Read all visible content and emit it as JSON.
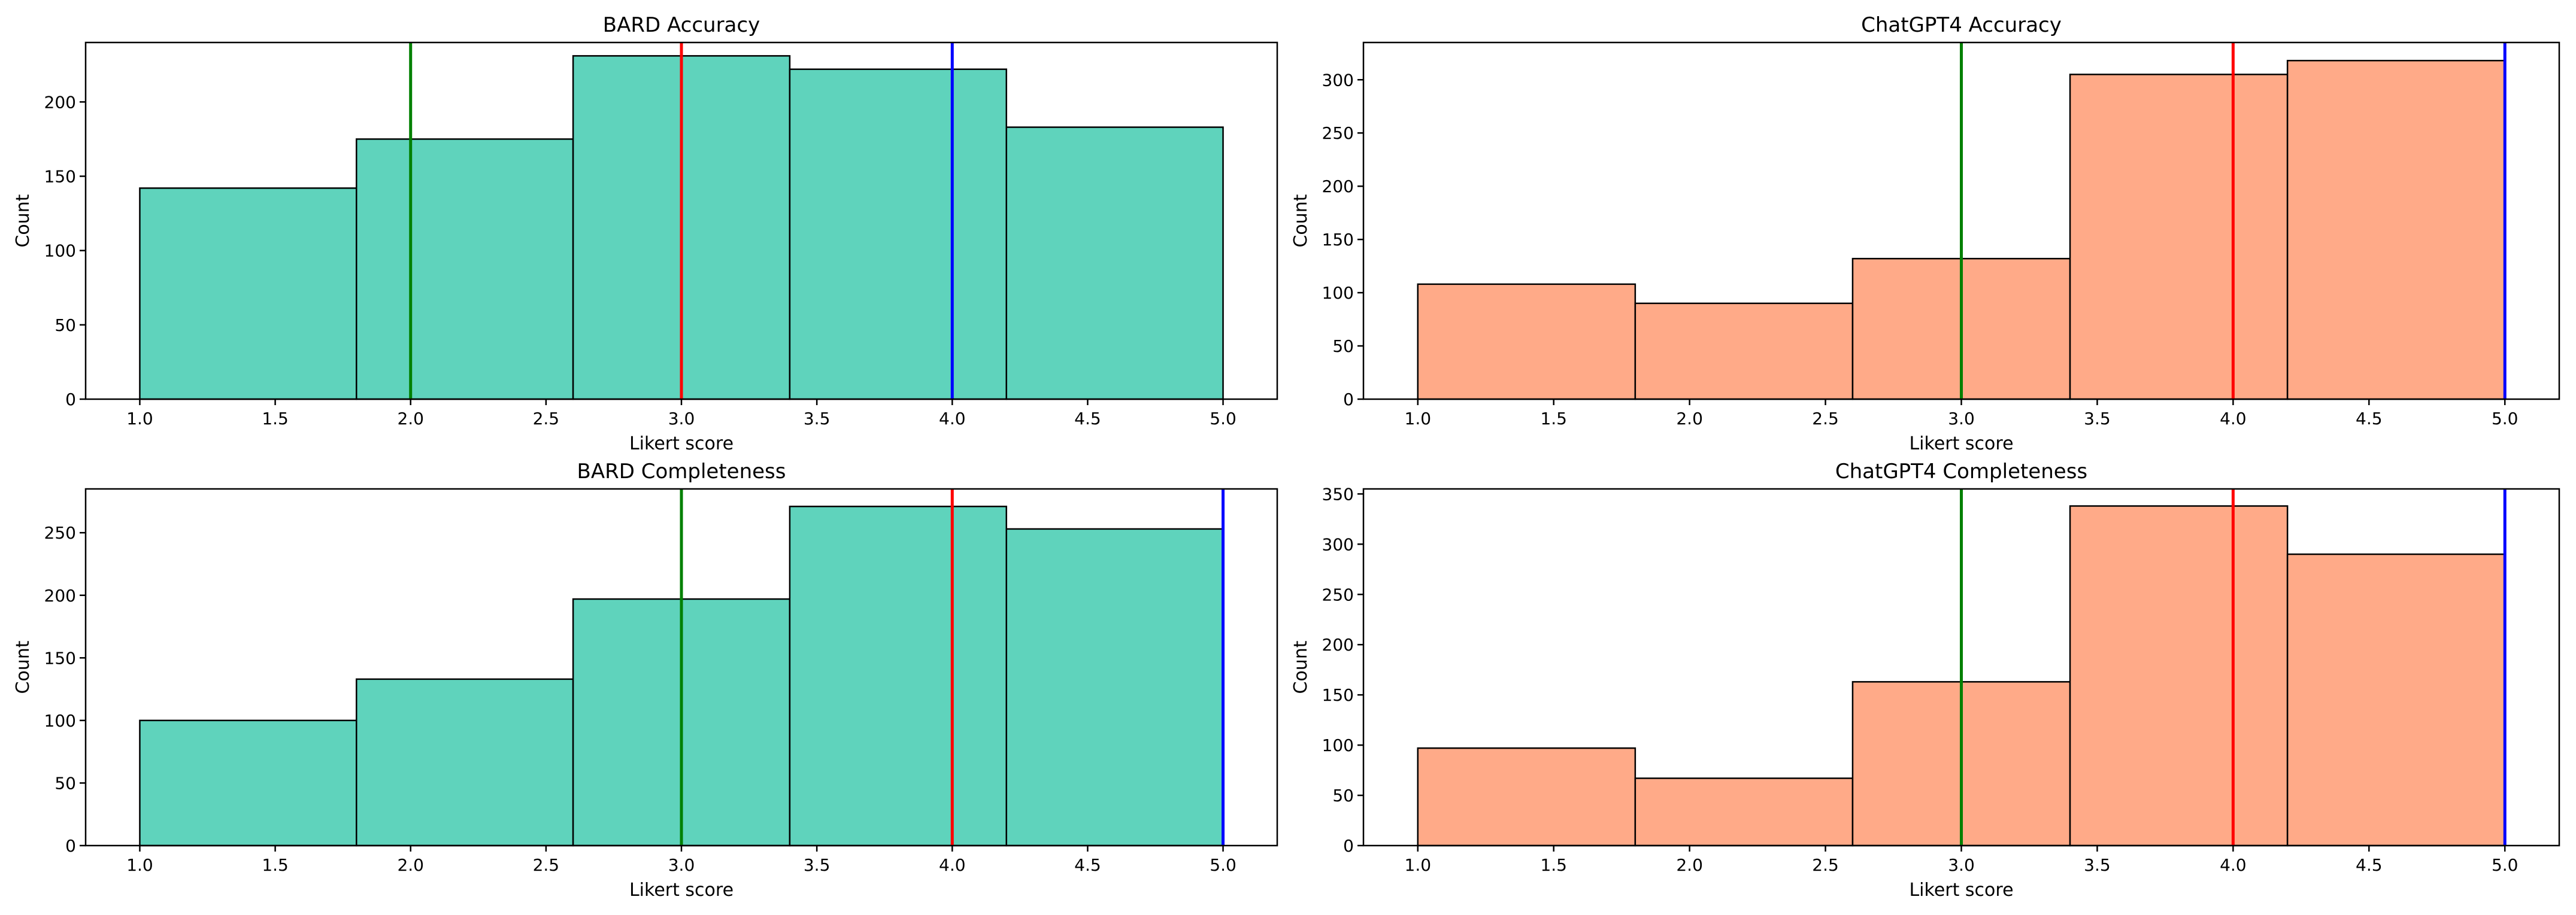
{
  "chart_data": [
    {
      "type": "bar",
      "title": "BARD Accuracy",
      "xlabel": "Likert score",
      "ylabel": "Count",
      "bin_edges": [
        1.0,
        1.8,
        2.6,
        3.4,
        4.2,
        5.0
      ],
      "values": [
        142,
        175,
        231,
        222,
        183
      ],
      "xlim": [
        0.8,
        5.2
      ],
      "ylim": [
        0,
        240
      ],
      "xticks": [
        1.0,
        1.5,
        2.0,
        2.5,
        3.0,
        3.5,
        4.0,
        4.5,
        5.0
      ],
      "xtick_labels": [
        "1.0",
        "1.5",
        "2.0",
        "2.5",
        "3.0",
        "3.5",
        "4.0",
        "4.5",
        "5.0"
      ],
      "yticks": [
        0,
        50,
        100,
        150,
        200
      ],
      "ytick_labels": [
        "0",
        "50",
        "100",
        "150",
        "200"
      ],
      "bar_color": "#5fd3bc",
      "vlines": [
        {
          "x": 2.0,
          "color": "#008000"
        },
        {
          "x": 3.0,
          "color": "#ff0000"
        },
        {
          "x": 4.0,
          "color": "#0000ff"
        }
      ],
      "grid": false
    },
    {
      "type": "bar",
      "title": "ChatGPT4 Accuracy",
      "xlabel": "Likert score",
      "ylabel": "Count",
      "bin_edges": [
        1.0,
        1.8,
        2.6,
        3.4,
        4.2,
        5.0
      ],
      "values": [
        108,
        90,
        132,
        305,
        318
      ],
      "xlim": [
        0.8,
        5.2
      ],
      "ylim": [
        0,
        335
      ],
      "xticks": [
        1.0,
        1.5,
        2.0,
        2.5,
        3.0,
        3.5,
        4.0,
        4.5,
        5.0
      ],
      "xtick_labels": [
        "1.0",
        "1.5",
        "2.0",
        "2.5",
        "3.0",
        "3.5",
        "4.0",
        "4.5",
        "5.0"
      ],
      "yticks": [
        0,
        50,
        100,
        150,
        200,
        250,
        300
      ],
      "ytick_labels": [
        "0",
        "50",
        "100",
        "150",
        "200",
        "250",
        "300"
      ],
      "bar_color": "#ffaa88",
      "vlines": [
        {
          "x": 3.0,
          "color": "#008000"
        },
        {
          "x": 4.0,
          "color": "#ff0000"
        },
        {
          "x": 5.0,
          "color": "#0000ff"
        }
      ],
      "grid": false
    },
    {
      "type": "bar",
      "title": "BARD Completeness",
      "xlabel": "Likert score",
      "ylabel": "Count",
      "bin_edges": [
        1.0,
        1.8,
        2.6,
        3.4,
        4.2,
        5.0
      ],
      "values": [
        100,
        133,
        197,
        271,
        253
      ],
      "xlim": [
        0.8,
        5.2
      ],
      "ylim": [
        0,
        285
      ],
      "xticks": [
        1.0,
        1.5,
        2.0,
        2.5,
        3.0,
        3.5,
        4.0,
        4.5,
        5.0
      ],
      "xtick_labels": [
        "1.0",
        "1.5",
        "2.0",
        "2.5",
        "3.0",
        "3.5",
        "4.0",
        "4.5",
        "5.0"
      ],
      "yticks": [
        0,
        50,
        100,
        150,
        200,
        250
      ],
      "ytick_labels": [
        "0",
        "50",
        "100",
        "150",
        "200",
        "250"
      ],
      "bar_color": "#5fd3bc",
      "vlines": [
        {
          "x": 3.0,
          "color": "#008000"
        },
        {
          "x": 4.0,
          "color": "#ff0000"
        },
        {
          "x": 5.0,
          "color": "#0000ff"
        }
      ],
      "grid": false
    },
    {
      "type": "bar",
      "title": "ChatGPT4 Completeness",
      "xlabel": "Likert score",
      "ylabel": "Count",
      "bin_edges": [
        1.0,
        1.8,
        2.6,
        3.4,
        4.2,
        5.0
      ],
      "values": [
        97,
        67,
        163,
        338,
        290
      ],
      "xlim": [
        0.8,
        5.2
      ],
      "ylim": [
        0,
        355
      ],
      "xticks": [
        1.0,
        1.5,
        2.0,
        2.5,
        3.0,
        3.5,
        4.0,
        4.5,
        5.0
      ],
      "xtick_labels": [
        "1.0",
        "1.5",
        "2.0",
        "2.5",
        "3.0",
        "3.5",
        "4.0",
        "4.5",
        "5.0"
      ],
      "yticks": [
        0,
        50,
        100,
        150,
        200,
        250,
        300,
        350
      ],
      "ytick_labels": [
        "0",
        "50",
        "100",
        "150",
        "200",
        "250",
        "300",
        "350"
      ],
      "bar_color": "#ffaa88",
      "vlines": [
        {
          "x": 3.0,
          "color": "#008000"
        },
        {
          "x": 4.0,
          "color": "#ff0000"
        },
        {
          "x": 5.0,
          "color": "#0000ff"
        }
      ],
      "grid": false
    }
  ]
}
